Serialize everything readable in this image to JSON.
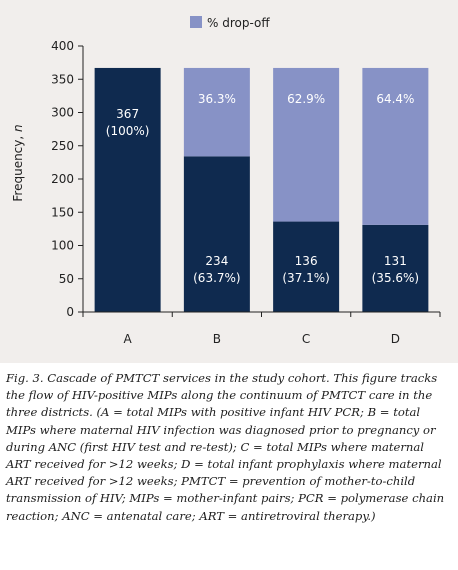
{
  "chart_data": {
    "type": "bar",
    "stacked": true,
    "categories": [
      "A",
      "B",
      "C",
      "D"
    ],
    "ylabel": "Frequency, n",
    "ylim": [
      0,
      400
    ],
    "yticks": [
      0,
      50,
      100,
      150,
      200,
      250,
      300,
      350,
      400
    ],
    "grid": false,
    "legend_position": "top",
    "series": [
      {
        "name": "",
        "color": "#0f2a4f",
        "values": [
          367,
          234,
          136,
          131
        ],
        "labels": [
          [
            "367",
            "(100%)"
          ],
          [
            "234",
            "(63.7%)"
          ],
          [
            "136",
            "(37.1%)"
          ],
          [
            "131",
            "(35.6%)"
          ]
        ]
      },
      {
        "name": "% drop-off",
        "color": "#8792c6",
        "values": [
          0,
          133,
          231,
          236
        ],
        "labels": [
          [],
          [
            "36.3%"
          ],
          [
            "62.9%"
          ],
          [
            "64.4%"
          ]
        ]
      }
    ]
  },
  "caption": "Fig. 3. Cascade of PMTCT services in the study cohort. This figure tracks the flow of HIV-positive MIPs along the continuum of PMTCT care in the three districts. (A = total MIPs with positive infant HIV PCR; B = total MIPs where maternal HIV infection was diagnosed prior to pregnancy or during ANC (first HIV test and re-test); C = total MIPs where maternal ART received for >12 weeks; D = total infant prophylaxis where maternal ART received for >12 weeks; PMTCT = prevention of mother-to-child transmission of HIV; MIPs = mother-infant pairs; PCR = polymerase chain reaction; ANC = antenatal care; ART = antiretroviral therapy.)"
}
